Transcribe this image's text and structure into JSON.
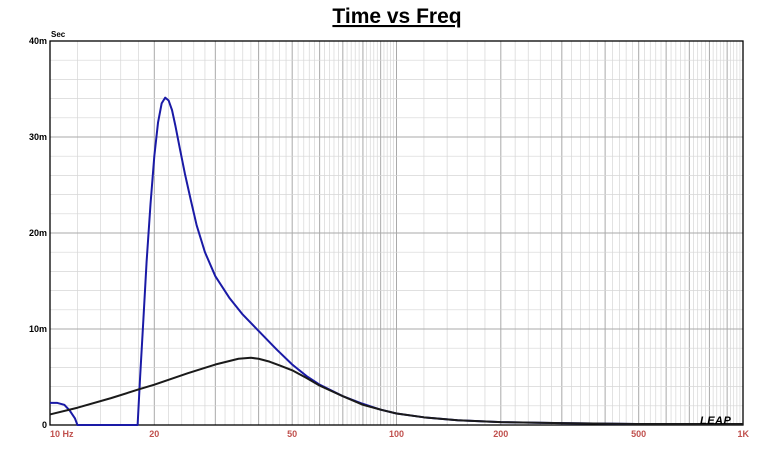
{
  "chart_data": {
    "type": "line",
    "title": "Time vs Freq",
    "ylabel": "Sec",
    "xlabel": "",
    "x_scale": "log",
    "xlim": [
      10,
      1000
    ],
    "ylim": [
      0,
      0.04
    ],
    "grid": true,
    "x_ticks": [
      {
        "value": 10,
        "label": "10  Hz"
      },
      {
        "value": 20,
        "label": "20"
      },
      {
        "value": 50,
        "label": "50"
      },
      {
        "value": 100,
        "label": "100"
      },
      {
        "value": 200,
        "label": "200"
      },
      {
        "value": 500,
        "label": "500"
      },
      {
        "value": 1000,
        "label": "1K"
      }
    ],
    "y_ticks": [
      {
        "value": 0,
        "label": "0"
      },
      {
        "value": 0.01,
        "label": "10m"
      },
      {
        "value": 0.02,
        "label": "20m"
      },
      {
        "value": 0.03,
        "label": "30m"
      },
      {
        "value": 0.04,
        "label": "40m"
      }
    ],
    "series": [
      {
        "color": "#1a1aa6",
        "x": [
          10,
          10.5,
          11,
          11.4,
          11.8,
          12.0,
          17.9,
          18.2,
          18.6,
          19.0,
          19.5,
          20,
          20.5,
          21,
          21.5,
          22,
          22.5,
          23,
          23.7,
          24.5,
          25.5,
          26.5,
          28,
          30,
          33,
          36,
          40,
          45,
          50,
          55,
          60,
          70,
          80,
          90,
          100,
          120,
          150,
          200,
          300,
          500,
          700,
          1000
        ],
        "values": [
          0.0023,
          0.0023,
          0.0021,
          0.0015,
          0.0007,
          0,
          0,
          0.005,
          0.011,
          0.017,
          0.023,
          0.028,
          0.0315,
          0.0335,
          0.0341,
          0.0338,
          0.0328,
          0.0312,
          0.0288,
          0.0262,
          0.0234,
          0.0208,
          0.018,
          0.0155,
          0.0132,
          0.0115,
          0.0098,
          0.0079,
          0.0063,
          0.0051,
          0.0042,
          0.003,
          0.0022,
          0.0016,
          0.0012,
          0.0008,
          0.0005,
          0.0003,
          0.0002,
          0.0001,
          0.0001,
          0.0001
        ]
      },
      {
        "color": "#1a1a1a",
        "x": [
          10,
          12,
          15,
          18,
          20,
          25,
          30,
          35,
          38,
          40,
          43,
          46,
          50,
          55,
          60,
          70,
          80,
          90,
          100,
          120,
          150,
          200,
          300,
          500,
          700,
          1000
        ],
        "values": [
          0.0011,
          0.0018,
          0.0028,
          0.0037,
          0.0042,
          0.0054,
          0.0063,
          0.0069,
          0.007,
          0.0069,
          0.0066,
          0.0062,
          0.0057,
          0.0049,
          0.0041,
          0.003,
          0.0021,
          0.0016,
          0.0012,
          0.0008,
          0.0005,
          0.0003,
          0.0002,
          0.0001,
          0.0001,
          0.0001
        ]
      }
    ],
    "logo": "LEAP"
  }
}
